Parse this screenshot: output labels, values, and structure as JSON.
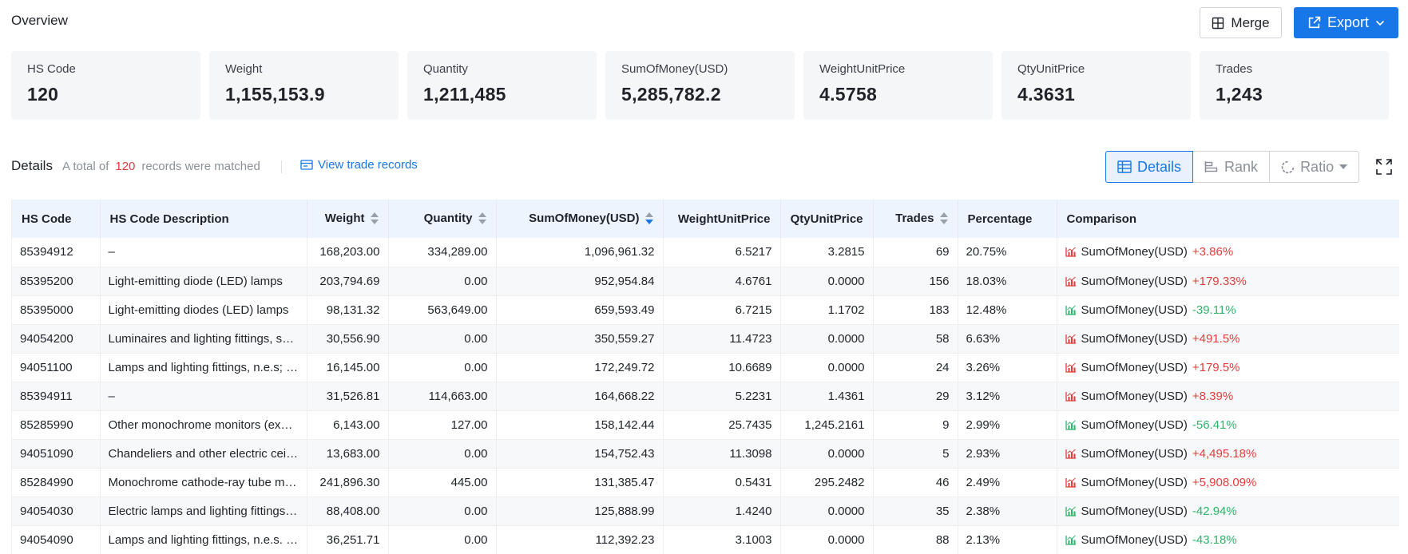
{
  "overview": {
    "title": "Overview",
    "merge_label": "Merge",
    "export_label": "Export"
  },
  "stats": [
    {
      "label": "HS Code",
      "value": "120"
    },
    {
      "label": "Weight",
      "value": "1,155,153.9"
    },
    {
      "label": "Quantity",
      "value": "1,211,485"
    },
    {
      "label": "SumOfMoney(USD)",
      "value": "5,285,782.2"
    },
    {
      "label": "WeightUnitPrice",
      "value": "4.5758"
    },
    {
      "label": "QtyUnitPrice",
      "value": "4.3631"
    },
    {
      "label": "Trades",
      "value": "1,243"
    }
  ],
  "details": {
    "title": "Details",
    "summary_prefix": "A total of",
    "count": "120",
    "summary_suffix": "records were matched",
    "view_records": "View trade records",
    "views": {
      "details": "Details",
      "rank": "Rank",
      "ratio": "Ratio"
    }
  },
  "table": {
    "columns": {
      "hs_code": "HS Code",
      "desc": "HS Code Description",
      "weight": "Weight",
      "quantity": "Quantity",
      "sum": "SumOfMoney(USD)",
      "wup": "WeightUnitPrice",
      "qup": "QtyUnitPrice",
      "trades": "Trades",
      "pct": "Percentage",
      "cmp": "Comparison"
    },
    "rows": [
      {
        "hs_code": "85394912",
        "desc": "–",
        "weight": "168,203.00",
        "quantity": "334,289.00",
        "sum": "1,096,961.32",
        "wup": "6.5217",
        "qup": "3.2815",
        "trades": "69",
        "pct": "20.75%",
        "cmp_label": "SumOfMoney(USD)",
        "cmp_value": "+3.86%",
        "trend": "up"
      },
      {
        "hs_code": "85395200",
        "desc": "Light-emitting diode (LED) lamps",
        "weight": "203,794.69",
        "quantity": "0.00",
        "sum": "952,954.84",
        "wup": "4.6761",
        "qup": "0.0000",
        "trades": "156",
        "pct": "18.03%",
        "cmp_label": "SumOfMoney(USD)",
        "cmp_value": "+179.33%",
        "trend": "up"
      },
      {
        "hs_code": "85395000",
        "desc": "Light-emitting diodes (LED) lamps",
        "weight": "98,131.32",
        "quantity": "563,649.00",
        "sum": "659,593.49",
        "wup": "6.7215",
        "qup": "1.1702",
        "trades": "183",
        "pct": "12.48%",
        "cmp_label": "SumOfMoney(USD)",
        "cmp_value": "-39.11%",
        "trend": "down"
      },
      {
        "hs_code": "94054200",
        "desc": "Luminaires and lighting fittings, solely …",
        "weight": "30,556.90",
        "quantity": "0.00",
        "sum": "350,559.27",
        "wup": "11.4723",
        "qup": "0.0000",
        "trades": "58",
        "pct": "6.63%",
        "cmp_label": "SumOfMoney(USD)",
        "cmp_value": "+491.5%",
        "trend": "up"
      },
      {
        "hs_code": "94051100",
        "desc": "Lamps and lighting fittings, n.e.s; lumi…",
        "weight": "16,145.00",
        "quantity": "0.00",
        "sum": "172,249.72",
        "wup": "10.6689",
        "qup": "0.0000",
        "trades": "24",
        "pct": "3.26%",
        "cmp_label": "SumOfMoney(USD)",
        "cmp_value": "+179.5%",
        "trend": "up"
      },
      {
        "hs_code": "85394911",
        "desc": "–",
        "weight": "31,526.81",
        "quantity": "114,663.00",
        "sum": "164,668.22",
        "wup": "5.2231",
        "qup": "1.4361",
        "trades": "29",
        "pct": "3.12%",
        "cmp_label": "SumOfMoney(USD)",
        "cmp_value": "+8.39%",
        "trend": "up"
      },
      {
        "hs_code": "85285990",
        "desc": "Other monochrome monitors (excl. CRT)",
        "weight": "6,143.00",
        "quantity": "127.00",
        "sum": "158,142.44",
        "wup": "25.7435",
        "qup": "1,245.2161",
        "trades": "9",
        "pct": "2.99%",
        "cmp_label": "SumOfMoney(USD)",
        "cmp_value": "-56.41%",
        "trend": "down"
      },
      {
        "hs_code": "94051090",
        "desc": "Chandeliers and other electric ceiling o…",
        "weight": "13,683.00",
        "quantity": "0.00",
        "sum": "154,752.43",
        "wup": "11.3098",
        "qup": "0.0000",
        "trades": "5",
        "pct": "2.93%",
        "cmp_label": "SumOfMoney(USD)",
        "cmp_value": "+4,495.18%",
        "trend": "up"
      },
      {
        "hs_code": "85284990",
        "desc": "Monochrome cathode-ray tube monito…",
        "weight": "241,896.30",
        "quantity": "445.00",
        "sum": "131,385.47",
        "wup": "0.5431",
        "qup": "295.2482",
        "trades": "46",
        "pct": "2.49%",
        "cmp_label": "SumOfMoney(USD)",
        "cmp_value": "+5,908.09%",
        "trend": "up"
      },
      {
        "hs_code": "94054030",
        "desc": "Electric lamps and lighting fittings, n.e.…",
        "weight": "88,408.00",
        "quantity": "0.00",
        "sum": "125,888.99",
        "wup": "1.4240",
        "qup": "0.0000",
        "trades": "35",
        "pct": "2.38%",
        "cmp_label": "SumOfMoney(USD)",
        "cmp_value": "-42.94%",
        "trend": "down"
      },
      {
        "hs_code": "94054090",
        "desc": "Lamps and lighting fittings, n.e.s. (excl…",
        "weight": "36,251.71",
        "quantity": "0.00",
        "sum": "112,392.23",
        "wup": "3.1003",
        "qup": "0.0000",
        "trades": "88",
        "pct": "2.13%",
        "cmp_label": "SumOfMoney(USD)",
        "cmp_value": "-43.18%",
        "trend": "down"
      }
    ]
  },
  "colors": {
    "accent": "#1777e8",
    "up": "#e23c3c",
    "down": "#2fb36a",
    "header_bg": "#eef4fd"
  }
}
